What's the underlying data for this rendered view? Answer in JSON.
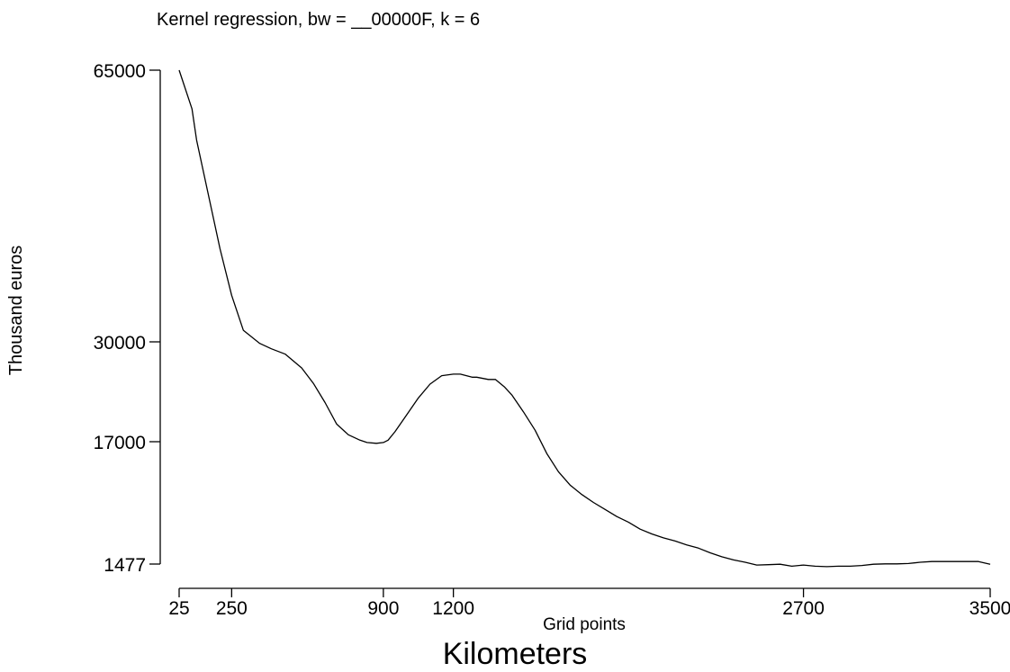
{
  "chart_data": {
    "type": "line",
    "title": "Kernel regression, bw = __00000F, k = 6",
    "xlabel": "Grid points",
    "ylabel": "Thousand euros",
    "caption": "Kilometers",
    "grid": false,
    "legend": "none",
    "line_color": "#000000",
    "x_ticks": [
      {
        "value": 25,
        "label": "25"
      },
      {
        "value": 250,
        "label": "250"
      },
      {
        "value": 900,
        "label": "900"
      },
      {
        "value": 1200,
        "label": "1200"
      },
      {
        "value": 2700,
        "label": "2700"
      },
      {
        "value": 3500,
        "label": "3500"
      }
    ],
    "y_ticks": [
      {
        "value": 1477,
        "label": "1477"
      },
      {
        "value": 17000,
        "label": "17000"
      },
      {
        "value": 30000,
        "label": "30000"
      },
      {
        "value": 65000,
        "label": "65000"
      }
    ],
    "series": [
      {
        "x": [
          25,
          80,
          100,
          150,
          200,
          250,
          300,
          370,
          420,
          480,
          550,
          600,
          650,
          700,
          750,
          800,
          830,
          870,
          900,
          920,
          950,
          1000,
          1050,
          1100,
          1150,
          1200,
          1230,
          1280,
          1300,
          1350,
          1380,
          1420,
          1450,
          1500,
          1550,
          1600,
          1650,
          1700,
          1750,
          1800,
          1850,
          1900,
          1950,
          2000,
          2050,
          2100,
          2150,
          2200,
          2250,
          2300,
          2350,
          2400,
          2450,
          2500,
          2550,
          2600,
          2650,
          2700,
          2750,
          2800,
          2850,
          2900,
          2950,
          3000,
          3050,
          3100,
          3150,
          3200,
          3250,
          3300,
          3350,
          3400,
          3450,
          3500
        ],
        "y": [
          65000,
          60000,
          56000,
          49000,
          42000,
          36000,
          31500,
          29800,
          29100,
          28400,
          26600,
          24600,
          22100,
          19300,
          17900,
          17200,
          16900,
          16800,
          16900,
          17200,
          18300,
          20500,
          22700,
          24500,
          25600,
          25800,
          25800,
          25400,
          25400,
          25100,
          25100,
          24100,
          23100,
          20900,
          18500,
          15500,
          13200,
          11500,
          10300,
          9300,
          8400,
          7500,
          6800,
          5900,
          5300,
          4800,
          4400,
          3900,
          3500,
          2900,
          2400,
          2000,
          1700,
          1350,
          1400,
          1450,
          1200,
          1350,
          1200,
          1150,
          1200,
          1200,
          1300,
          1450,
          1500,
          1500,
          1550,
          1700,
          1800,
          1800,
          1800,
          1800,
          1800,
          1450
        ]
      }
    ]
  }
}
